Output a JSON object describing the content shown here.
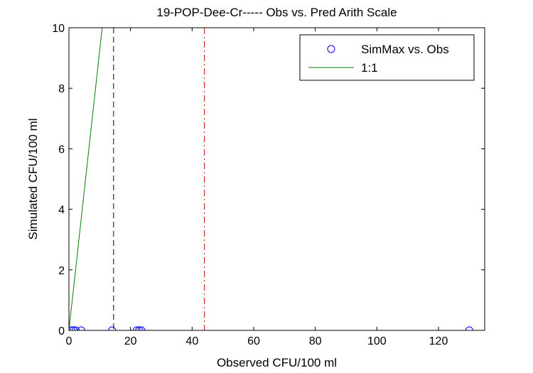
{
  "chart_data": {
    "type": "scatter",
    "title": "19-POP-Dee-Cr----- Obs vs. Pred Arith Scale",
    "xlabel": "Observed CFU/100 ml",
    "ylabel": "Simulated CFU/100 ml",
    "xlim": [
      0,
      135
    ],
    "ylim": [
      0,
      10
    ],
    "xticks": [
      0,
      20,
      40,
      60,
      80,
      100,
      120
    ],
    "yticks": [
      0,
      2,
      4,
      6,
      8,
      10
    ],
    "grid": false,
    "legend_position": "top-right",
    "series": [
      {
        "name": "SimMax vs. Obs",
        "kind": "scatter",
        "marker": "circle",
        "color": "#0000ff",
        "points": [
          [
            0.8,
            0
          ],
          [
            1.5,
            0
          ],
          [
            2.2,
            0
          ],
          [
            4,
            0
          ],
          [
            14,
            0
          ],
          [
            22,
            0
          ],
          [
            22.8,
            0
          ],
          [
            23.5,
            0
          ],
          [
            130,
            0
          ]
        ]
      },
      {
        "name": "1:1",
        "kind": "line",
        "color": "#008000",
        "points": [
          [
            0,
            0
          ],
          [
            10.8,
            10
          ]
        ]
      }
    ],
    "reference_lines": [
      {
        "orientation": "vertical",
        "x": 14.5,
        "style": "dashed",
        "color": "#000000"
      },
      {
        "orientation": "vertical",
        "x": 44,
        "style": "dashdot",
        "color": "#cc0000"
      }
    ]
  }
}
